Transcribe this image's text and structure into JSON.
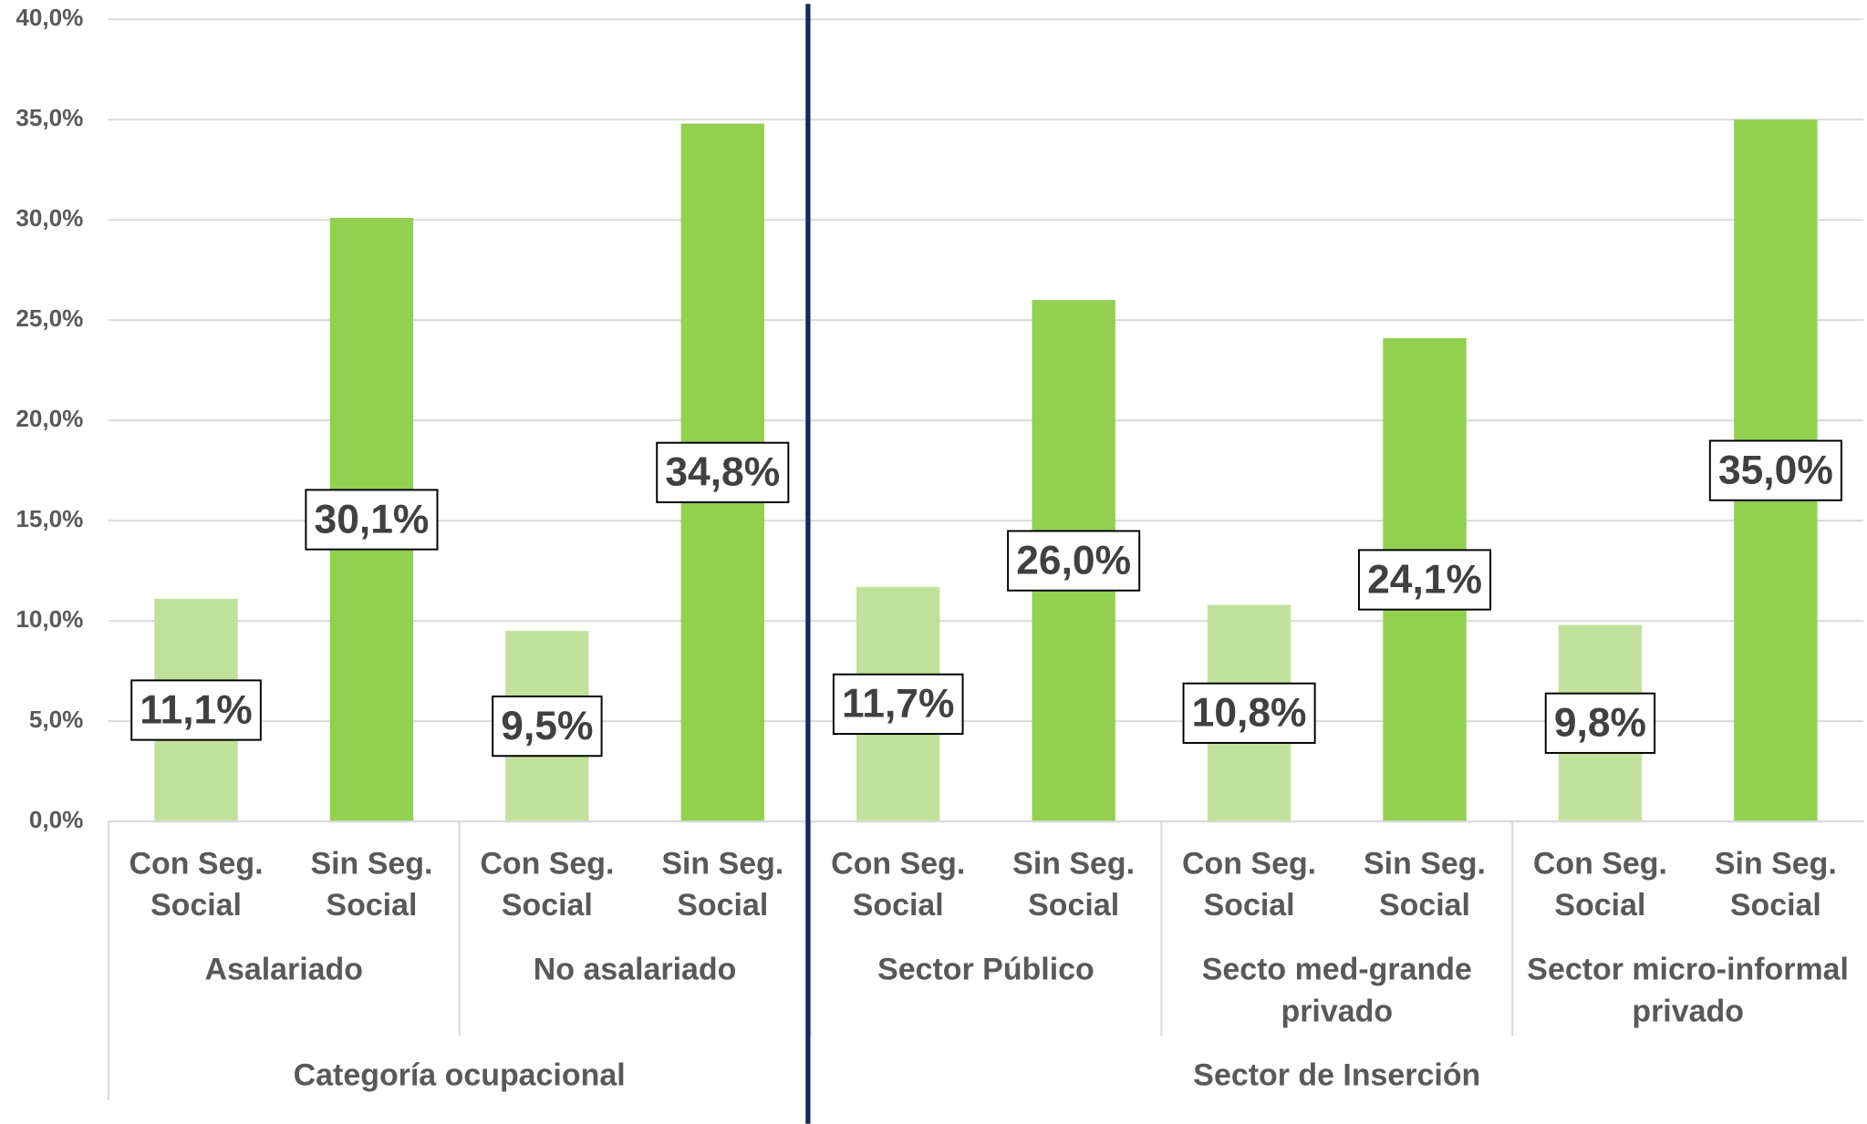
{
  "chart_data": {
    "type": "bar",
    "categories": [
      "Con Seg. Social",
      "Sin Seg. Social",
      "Con Seg. Social",
      "Sin Seg. Social",
      "Con Seg. Social",
      "Sin Seg. Social",
      "Con Seg. Social",
      "Sin Seg. Social",
      "Con Seg. Social",
      "Sin Seg. Social"
    ],
    "groups": [
      {
        "name": "Asalariado",
        "span": 2
      },
      {
        "name": "No asalariado",
        "span": 2
      },
      {
        "name": "Sector Público",
        "span": 2
      },
      {
        "name": "Secto med-grande privado",
        "span": 2
      },
      {
        "name": "Sector micro-informal privado",
        "span": 2
      }
    ],
    "supergroups": [
      {
        "name": "Categoría ocupacional",
        "span": 4
      },
      {
        "name": "Sector de Inserción",
        "span": 6
      }
    ],
    "values": [
      11.1,
      30.1,
      9.5,
      34.8,
      11.7,
      26.0,
      10.8,
      24.1,
      9.8,
      35.0
    ],
    "value_labels": [
      "11,1%",
      "30,1%",
      "9,5%",
      "34,8%",
      "11,7%",
      "26,0%",
      "10,8%",
      "24,1%",
      "9,8%",
      "35,0%"
    ],
    "colors": [
      "#c0e29a",
      "#92d050",
      "#c0e29a",
      "#92d050",
      "#c0e29a",
      "#92d050",
      "#c0e29a",
      "#92d050",
      "#c0e29a",
      "#92d050"
    ],
    "ylim": [
      0,
      40
    ],
    "yticks": [
      {
        "value": 0,
        "label": "0,0%"
      },
      {
        "value": 5,
        "label": "5,0%"
      },
      {
        "value": 10,
        "label": "10,0%"
      },
      {
        "value": 15,
        "label": "15,0%"
      },
      {
        "value": 20,
        "label": "20,0%"
      },
      {
        "value": 25,
        "label": "25,0%"
      },
      {
        "value": 30,
        "label": "30,0%"
      },
      {
        "value": 35,
        "label": "35,0%"
      },
      {
        "value": 40,
        "label": "40,0%"
      }
    ],
    "grid": true
  }
}
